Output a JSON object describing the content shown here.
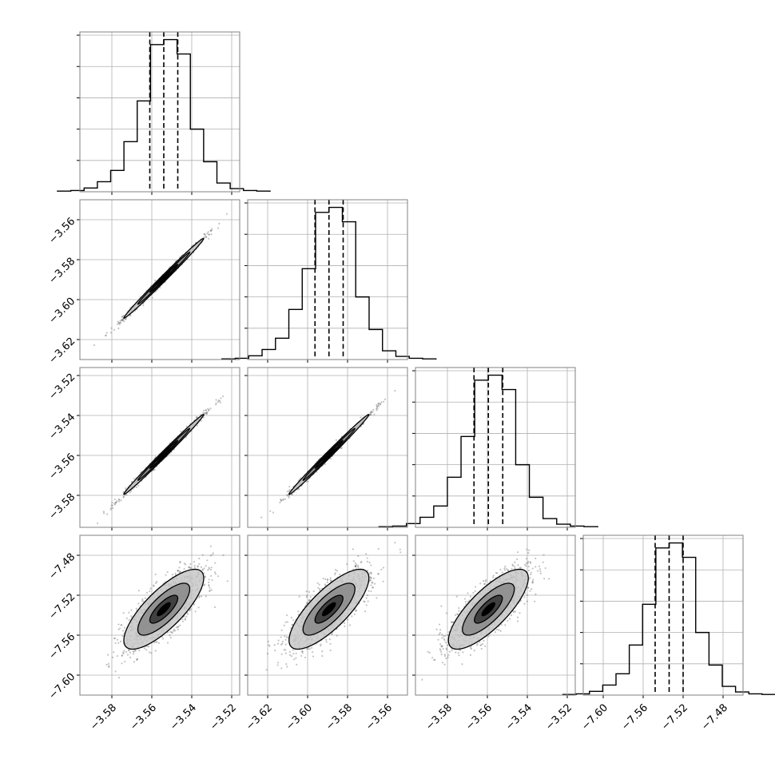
{
  "chart_data": {
    "type": "corner",
    "grid": true,
    "params": [
      {
        "index": 0,
        "range": [
          -3.596,
          -3.516
        ],
        "ticks": [
          {
            "value": -3.58,
            "label": "−3.58"
          },
          {
            "value": -3.56,
            "label": "−3.56"
          },
          {
            "value": -3.54,
            "label": "−3.54"
          },
          {
            "value": -3.52,
            "label": "−3.52"
          }
        ],
        "quantiles": [
          -3.561,
          -3.554,
          -3.547
        ],
        "hist_counts": [
          1,
          2,
          6,
          16,
          34,
          80,
          145,
          235,
          243,
          220,
          100,
          48,
          14,
          5,
          2,
          1
        ]
      },
      {
        "index": 1,
        "range": [
          -3.63,
          -3.55
        ],
        "ticks": [
          {
            "value": -3.62,
            "label": "−3.62"
          },
          {
            "value": -3.6,
            "label": "−3.60"
          },
          {
            "value": -3.58,
            "label": "−3.58"
          },
          {
            "value": -3.56,
            "label": "−3.56"
          }
        ],
        "quantiles": [
          -3.5963,
          -3.5893,
          -3.5822
        ],
        "hist_counts": [
          1,
          2,
          6,
          16,
          34,
          80,
          145,
          235,
          243,
          220,
          100,
          48,
          14,
          5,
          2,
          1
        ]
      },
      {
        "index": 2,
        "range": [
          -3.596,
          -3.516
        ],
        "ticks": [
          {
            "value": -3.58,
            "label": "−3.58"
          },
          {
            "value": -3.56,
            "label": "−3.56"
          },
          {
            "value": -3.54,
            "label": "−3.54"
          },
          {
            "value": -3.52,
            "label": "−3.52"
          }
        ],
        "quantiles": [
          -3.5667,
          -3.5595,
          -3.5523
        ],
        "hist_counts": [
          1,
          2,
          6,
          16,
          34,
          80,
          145,
          235,
          243,
          220,
          100,
          48,
          14,
          5,
          2,
          1
        ]
      },
      {
        "index": 3,
        "range": [
          -7.62,
          -7.46
        ],
        "ticks": [
          {
            "value": -7.6,
            "label": "−7.60"
          },
          {
            "value": -7.56,
            "label": "−7.56"
          },
          {
            "value": -7.52,
            "label": "−7.52"
          },
          {
            "value": -7.48,
            "label": "−7.48"
          }
        ],
        "quantiles": [
          -7.548,
          -7.534,
          -7.52
        ],
        "hist_counts": [
          1,
          2,
          6,
          16,
          34,
          80,
          145,
          235,
          243,
          220,
          100,
          48,
          14,
          5,
          2,
          1
        ]
      }
    ],
    "pairs": [
      {
        "row": 1,
        "col": 0,
        "mean": [
          -3.554,
          -3.5893
        ],
        "sd": [
          0.01,
          0.01
        ],
        "corr": 0.995
      },
      {
        "row": 2,
        "col": 0,
        "mean": [
          -3.554,
          -3.5595
        ],
        "sd": [
          0.01,
          0.01
        ],
        "corr": 0.995
      },
      {
        "row": 2,
        "col": 1,
        "mean": [
          -3.5893,
          -3.5595
        ],
        "sd": [
          0.01,
          0.01
        ],
        "corr": 0.995
      },
      {
        "row": 3,
        "col": 0,
        "mean": [
          -3.554,
          -7.534
        ],
        "sd": [
          0.01,
          0.02
        ],
        "corr": 0.78
      },
      {
        "row": 3,
        "col": 1,
        "mean": [
          -3.5893,
          -7.534
        ],
        "sd": [
          0.01,
          0.02
        ],
        "corr": 0.78
      },
      {
        "row": 3,
        "col": 2,
        "mean": [
          -3.5595,
          -7.534
        ],
        "sd": [
          0.01,
          0.02
        ],
        "corr": 0.78
      }
    ],
    "colors": {
      "line": "#000000",
      "grid": "#b0b0b0",
      "frame": "#808080",
      "points": "#555555"
    }
  }
}
